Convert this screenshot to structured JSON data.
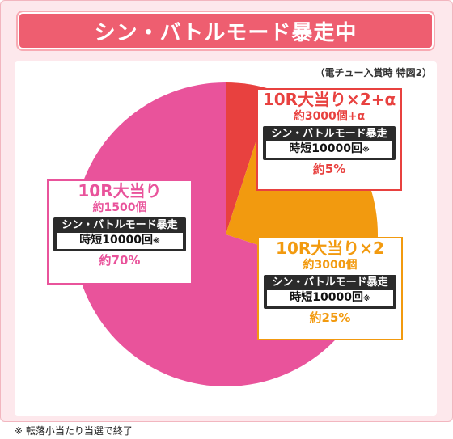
{
  "title": "シン・バトルモード暴走中",
  "condition_note": "（電チュー入賞時 特図2）",
  "footnote": "※ 転落小当たり当選で終了",
  "chart_data": {
    "type": "pie",
    "title": "シン・バトルモード暴走中",
    "slices": [
      {
        "label": "10R大当り×2+α",
        "payout": "約3000個+α",
        "mode": "シン・バトルモード暴走",
        "jitan": "時短10000回",
        "jitan_mark": "※",
        "percent_label": "約5%",
        "value": 5,
        "color": "#e8413f"
      },
      {
        "label": "10R大当り×2",
        "payout": "約3000個",
        "mode": "シン・バトルモード暴走",
        "jitan": "時短10000回",
        "jitan_mark": "※",
        "percent_label": "約25%",
        "value": 25,
        "color": "#f29a0f"
      },
      {
        "label": "10R大当り",
        "payout": "約1500個",
        "mode": "シン・バトルモード暴走",
        "jitan": "時短10000回",
        "jitan_mark": "※",
        "percent_label": "約70%",
        "value": 70,
        "color": "#e9539b"
      }
    ]
  }
}
